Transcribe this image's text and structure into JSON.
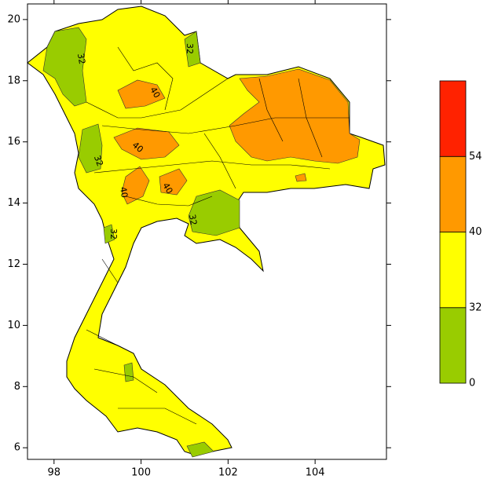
{
  "map": {
    "xlim": [
      97.39,
      105.64
    ],
    "ylim": [
      5.62,
      20.51
    ],
    "xticks": [
      98,
      100,
      102,
      104
    ],
    "yticks": [
      6,
      8,
      10,
      12,
      14,
      16,
      18,
      20
    ],
    "colorbar": {
      "levels": [
        0,
        32,
        40,
        54
      ],
      "colors": [
        "#99cc00",
        "#ffff00",
        "#ff9900",
        "#ff2200"
      ]
    },
    "contour_labels": [
      32,
      32,
      40,
      40,
      40,
      40,
      32,
      32,
      32
    ]
  }
}
